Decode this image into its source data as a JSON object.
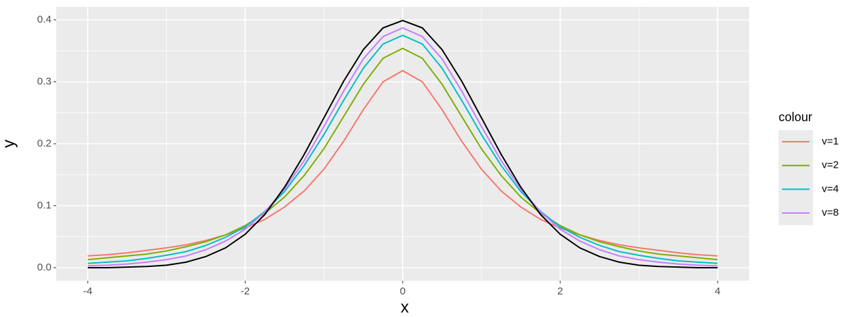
{
  "chart_data": {
    "type": "line",
    "x_label": "x",
    "y_label": "y",
    "legend_title": "colour",
    "x": [
      -4,
      -3.75,
      -3.5,
      -3.25,
      -3,
      -2.75,
      -2.5,
      -2.25,
      -2,
      -1.75,
      -1.5,
      -1.25,
      -1,
      -0.75,
      -0.5,
      -0.25,
      0,
      0.25,
      0.5,
      0.75,
      1,
      1.25,
      1.5,
      1.75,
      2,
      2.25,
      2.5,
      2.75,
      3,
      3.25,
      3.5,
      3.75,
      4
    ],
    "series": [
      {
        "name": "v=1",
        "color": "#F8766D",
        "values": [
          0.019,
          0.021,
          0.024,
          0.028,
          0.032,
          0.037,
          0.044,
          0.053,
          0.064,
          0.078,
          0.098,
          0.124,
          0.159,
          0.204,
          0.255,
          0.3,
          0.318,
          0.3,
          0.255,
          0.204,
          0.159,
          0.124,
          0.098,
          0.078,
          0.064,
          0.053,
          0.044,
          0.037,
          0.032,
          0.028,
          0.024,
          0.021,
          0.019
        ]
      },
      {
        "name": "v=2",
        "color": "#7CAE00",
        "values": [
          0.013,
          0.016,
          0.019,
          0.022,
          0.027,
          0.034,
          0.042,
          0.053,
          0.068,
          0.088,
          0.114,
          0.149,
          0.192,
          0.244,
          0.296,
          0.338,
          0.354,
          0.338,
          0.296,
          0.244,
          0.192,
          0.149,
          0.114,
          0.088,
          0.068,
          0.053,
          0.042,
          0.034,
          0.027,
          0.022,
          0.019,
          0.016,
          0.013
        ]
      },
      {
        "name": "v=4",
        "color": "#00BFC4",
        "values": [
          0.007,
          0.009,
          0.011,
          0.015,
          0.02,
          0.026,
          0.036,
          0.049,
          0.066,
          0.091,
          0.123,
          0.165,
          0.215,
          0.27,
          0.322,
          0.361,
          0.375,
          0.361,
          0.322,
          0.27,
          0.215,
          0.165,
          0.123,
          0.091,
          0.066,
          0.049,
          0.036,
          0.026,
          0.02,
          0.015,
          0.011,
          0.009,
          0.007
        ]
      },
      {
        "name": "v=8",
        "color": "#C77CFF",
        "values": [
          0.003,
          0.004,
          0.006,
          0.009,
          0.013,
          0.019,
          0.029,
          0.043,
          0.062,
          0.09,
          0.127,
          0.173,
          0.228,
          0.285,
          0.337,
          0.373,
          0.387,
          0.373,
          0.337,
          0.285,
          0.228,
          0.173,
          0.127,
          0.09,
          0.062,
          0.043,
          0.029,
          0.019,
          0.013,
          0.009,
          0.006,
          0.004,
          0.003
        ]
      },
      {
        "color": "#000000",
        "values": [
          0.0,
          0.0,
          0.001,
          0.002,
          0.004,
          0.009,
          0.018,
          0.032,
          0.054,
          0.086,
          0.13,
          0.183,
          0.242,
          0.301,
          0.352,
          0.387,
          0.399,
          0.387,
          0.352,
          0.301,
          0.242,
          0.183,
          0.13,
          0.086,
          0.054,
          0.032,
          0.018,
          0.009,
          0.004,
          0.002,
          0.001,
          0.0,
          0.0
        ]
      }
    ],
    "xlim": [
      -4.4,
      4.4
    ],
    "xticks": [
      -4,
      -2,
      0,
      2,
      4
    ],
    "ylim": [
      -0.021,
      0.421
    ],
    "yticks": [
      {
        "value": 0,
        "label": "0.0"
      },
      0.1,
      0.2,
      0.3,
      0.4
    ],
    "grid": true
  }
}
